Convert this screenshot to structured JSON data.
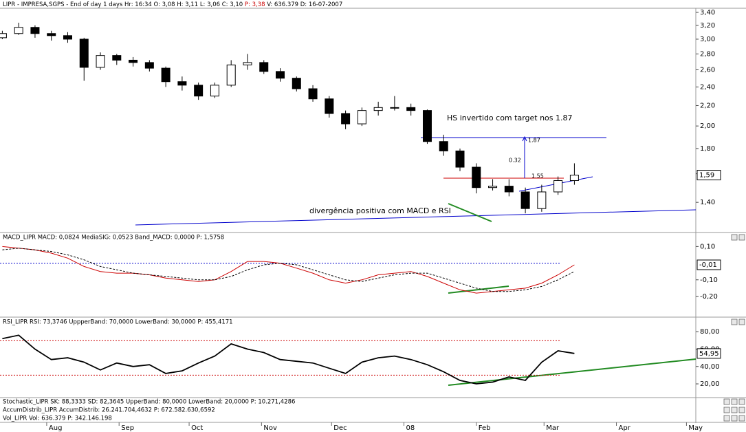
{
  "chart_data": [
    {
      "type": "candlestick",
      "title": "LIPR - IMPRESA,SGPS - End of day 1 days Hr: 16:34 O: 3,08 H: 3,11 L: 3,06 C: 3,10",
      "title_price": "P: 3,38",
      "title_rest": "V: 636.379 D: 16-07-2007",
      "x": [
        "2007-07-13",
        "2007-07-20",
        "2007-07-27",
        "2007-08-03",
        "2007-08-10",
        "2007-08-17",
        "2007-08-24",
        "2007-08-31",
        "2007-09-07",
        "2007-09-14",
        "2007-09-21",
        "2007-09-28",
        "2007-10-05",
        "2007-10-12",
        "2007-10-19",
        "2007-10-26",
        "2007-11-02",
        "2007-11-09",
        "2007-11-16",
        "2007-11-23",
        "2007-11-30",
        "2007-12-07",
        "2007-12-14",
        "2007-12-21",
        "2007-12-28",
        "2008-01-04",
        "2008-01-11",
        "2008-01-18",
        "2008-01-25",
        "2008-02-01",
        "2008-02-08",
        "2008-02-15",
        "2008-02-22",
        "2008-02-29",
        "2008-03-07",
        "2008-03-14"
      ],
      "open": [
        3.02,
        3.08,
        3.17,
        3.08,
        3.05,
        3.0,
        2.63,
        2.78,
        2.72,
        2.69,
        2.62,
        2.46,
        2.42,
        2.3,
        2.42,
        2.66,
        2.69,
        2.58,
        2.5,
        2.38,
        2.27,
        2.12,
        2.02,
        2.15,
        2.18,
        2.18,
        2.15,
        1.86,
        1.78,
        1.65,
        1.5,
        1.51,
        1.47,
        1.36,
        1.47,
        1.55
      ],
      "high": [
        3.12,
        3.24,
        3.2,
        3.12,
        3.1,
        3.02,
        2.82,
        2.8,
        2.76,
        2.72,
        2.64,
        2.52,
        2.45,
        2.45,
        2.72,
        2.8,
        2.72,
        2.62,
        2.52,
        2.42,
        2.3,
        2.15,
        2.18,
        2.24,
        2.3,
        2.22,
        2.16,
        1.92,
        1.8,
        1.68,
        1.56,
        1.56,
        1.5,
        1.52,
        1.58,
        1.68
      ],
      "low": [
        3.0,
        3.06,
        3.02,
        2.98,
        2.95,
        2.47,
        2.6,
        2.66,
        2.64,
        2.58,
        2.4,
        2.36,
        2.26,
        2.28,
        2.4,
        2.6,
        2.55,
        2.46,
        2.35,
        2.24,
        2.08,
        1.97,
        2.0,
        2.1,
        2.15,
        2.1,
        1.84,
        1.74,
        1.62,
        1.46,
        1.48,
        1.44,
        1.33,
        1.34,
        1.45,
        1.52
      ],
      "close": [
        3.08,
        3.17,
        3.08,
        3.05,
        3.0,
        2.63,
        2.78,
        2.72,
        2.69,
        2.62,
        2.46,
        2.42,
        2.3,
        2.42,
        2.66,
        2.69,
        2.58,
        2.5,
        2.38,
        2.27,
        2.12,
        2.02,
        2.15,
        2.18,
        2.18,
        2.15,
        1.86,
        1.78,
        1.65,
        1.5,
        1.51,
        1.47,
        1.36,
        1.47,
        1.55,
        1.59
      ],
      "up_color": "#ffffff",
      "down_color": "#000000",
      "log_scale": true,
      "ylim": [
        1.22,
        3.466
      ],
      "yticks": [
        {
          "value": 1.4,
          "label": "1,40"
        },
        {
          "value": 1.6,
          "label": "1,60"
        },
        {
          "value": 1.8,
          "label": "1,80"
        },
        {
          "value": 2.0,
          "label": "2,00"
        },
        {
          "value": 2.2,
          "label": "2,20"
        },
        {
          "value": 2.4,
          "label": "2,40"
        },
        {
          "value": 2.6,
          "label": "2,60"
        },
        {
          "value": 2.8,
          "label": "2,80"
        },
        {
          "value": 3.0,
          "label": "3,00"
        },
        {
          "value": 3.2,
          "label": "3,20"
        },
        {
          "value": 3.4,
          "label": "3,40"
        }
      ],
      "xlim": [
        "2007-07-12",
        "2008-05-05"
      ],
      "xticks": [
        {
          "value": "2007-08-01",
          "label": "Aug"
        },
        {
          "value": "2007-09-01",
          "label": "Sep"
        },
        {
          "value": "2007-10-01",
          "label": "Oct"
        },
        {
          "value": "2007-11-01",
          "label": "Nov"
        },
        {
          "value": "2007-12-01",
          "label": "Dec"
        },
        {
          "value": "2008-01-01",
          "label": "08"
        },
        {
          "value": "2008-02-01",
          "label": "Feb"
        },
        {
          "value": "2008-03-01",
          "label": "Mar"
        },
        {
          "value": "2008-04-01",
          "label": "Apr"
        },
        {
          "value": "2008-05-01",
          "label": "May"
        }
      ],
      "last_value": {
        "value": 1.59,
        "label": "1,59"
      },
      "annotations": [
        "HS invertido com target nos 1.87",
        "divergência positiva com MACD e RSI",
        "1.87",
        "0.32",
        "1.55"
      ]
    },
    {
      "type": "line",
      "title": "MACD_LIPR MACD: 0,0824 MediaSIG: 0,0523 Band_MACD: 0,0000 P: 1,5758",
      "x": [
        "2007-07-13",
        "2007-07-20",
        "2007-07-27",
        "2007-08-03",
        "2007-08-10",
        "2007-08-17",
        "2007-08-24",
        "2007-08-31",
        "2007-09-07",
        "2007-09-14",
        "2007-09-21",
        "2007-09-28",
        "2007-10-05",
        "2007-10-12",
        "2007-10-19",
        "2007-10-26",
        "2007-11-02",
        "2007-11-09",
        "2007-11-16",
        "2007-11-23",
        "2007-11-30",
        "2007-12-07",
        "2007-12-14",
        "2007-12-21",
        "2007-12-28",
        "2008-01-04",
        "2008-01-11",
        "2008-01-18",
        "2008-01-25",
        "2008-02-01",
        "2008-02-08",
        "2008-02-15",
        "2008-02-22",
        "2008-02-29",
        "2008-03-07",
        "2008-03-14"
      ],
      "series": [
        {
          "color": "#cc0000",
          "dashed": false,
          "values": [
            0.1,
            0.09,
            0.08,
            0.06,
            0.03,
            -0.02,
            -0.05,
            -0.06,
            -0.06,
            -0.07,
            -0.09,
            -0.1,
            -0.11,
            -0.1,
            -0.05,
            0.01,
            0.01,
            0.0,
            -0.03,
            -0.06,
            -0.1,
            -0.12,
            -0.1,
            -0.07,
            -0.06,
            -0.05,
            -0.08,
            -0.12,
            -0.16,
            -0.18,
            -0.17,
            -0.16,
            -0.15,
            -0.12,
            -0.07,
            -0.01
          ]
        },
        {
          "color": "#000000",
          "dashed": true,
          "values": [
            0.08,
            0.09,
            0.08,
            0.07,
            0.05,
            0.02,
            -0.02,
            -0.04,
            -0.06,
            -0.07,
            -0.08,
            -0.09,
            -0.1,
            -0.1,
            -0.08,
            -0.04,
            -0.01,
            0.0,
            -0.01,
            -0.04,
            -0.07,
            -0.1,
            -0.11,
            -0.09,
            -0.07,
            -0.06,
            -0.06,
            -0.09,
            -0.12,
            -0.15,
            -0.17,
            -0.17,
            -0.16,
            -0.14,
            -0.1,
            -0.05
          ]
        }
      ],
      "bands": [
        0
      ],
      "band_color": "#0000cc",
      "ylim": [
        -0.32,
        0.18
      ],
      "yticks": [
        {
          "value": -0.2,
          "label": "-0,20"
        },
        {
          "value": -0.1,
          "label": "-0,10"
        },
        {
          "value": 0.1,
          "label": "0,10"
        }
      ],
      "last_value": {
        "value": -0.01,
        "label": "-0,01"
      }
    },
    {
      "type": "line",
      "title": "RSI_LIPR RSI: 73,3746 UppperBand: 70,0000 LowerBand: 30,0000 P: 455,4171",
      "x": [
        "2007-07-13",
        "2007-07-20",
        "2007-07-27",
        "2007-08-03",
        "2007-08-10",
        "2007-08-17",
        "2007-08-24",
        "2007-08-31",
        "2007-09-07",
        "2007-09-14",
        "2007-09-21",
        "2007-09-28",
        "2007-10-05",
        "2007-10-12",
        "2007-10-19",
        "2007-10-26",
        "2007-11-02",
        "2007-11-09",
        "2007-11-16",
        "2007-11-23",
        "2007-11-30",
        "2007-12-07",
        "2007-12-14",
        "2007-12-21",
        "2007-12-28",
        "2008-01-04",
        "2008-01-11",
        "2008-01-18",
        "2008-01-25",
        "2008-02-01",
        "2008-02-08",
        "2008-02-15",
        "2008-02-22",
        "2008-02-29",
        "2008-03-07",
        "2008-03-14"
      ],
      "series": [
        {
          "color": "#000000",
          "dashed": false,
          "values": [
            72,
            76,
            60,
            48,
            50,
            45,
            36,
            44,
            40,
            42,
            32,
            35,
            44,
            52,
            66,
            60,
            56,
            48,
            46,
            44,
            38,
            32,
            45,
            50,
            52,
            48,
            42,
            34,
            24,
            20,
            22,
            28,
            24,
            45,
            58,
            55
          ]
        }
      ],
      "bands": [
        70,
        30
      ],
      "band_color": "#cc0000",
      "ylim": [
        5,
        96
      ],
      "yticks": [
        {
          "value": 20,
          "label": "20,00"
        },
        {
          "value": 40,
          "label": "40,00"
        },
        {
          "value": 60,
          "label": "60,00"
        },
        {
          "value": 80,
          "label": "80,00"
        }
      ],
      "last_value": {
        "value": 54.95,
        "label": "54,95"
      }
    }
  ],
  "footer": [
    "Stochastic_LIPR SK: 88,3333 SD: 82,3645 UpperBand: 80,0000 LowerBand: 20,0000 P: 10.271,4286",
    "AccumDistrib_LIPR AccumDistrib: 26.241.704,4632 P: 672.582.630,6592",
    "Vol_LIPR Vol: 636.379 P: 342.146.198"
  ]
}
